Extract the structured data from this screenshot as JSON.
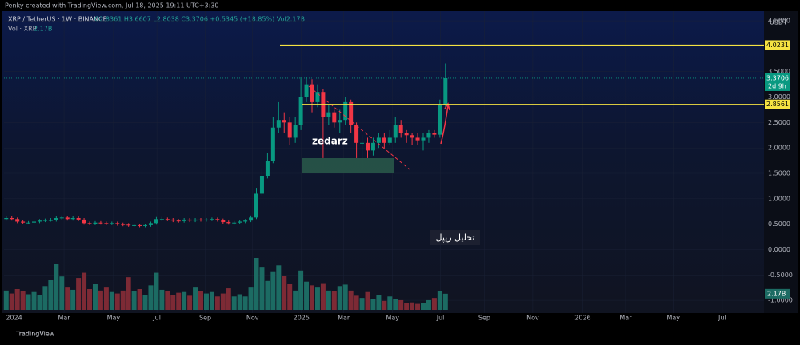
{
  "header": {
    "credit": "Penky created with TradingView.com, Jul 18, 2025 19:11 UTC+3:30",
    "symbol": "XRP / TetherUS · 1W · BINANCE",
    "ohlc": "O2.8361 H3.6607 L2.8038 C3.3706 +0.5345 (+18.85%) Vol2.17B",
    "vol_legend": "Vol · XRP",
    "vol_value": "2.17B",
    "currency": "USDT",
    "countdown": "2d 9h",
    "brand": "TradingView"
  },
  "annotations": {
    "watermark": "zedarz",
    "note": "تحلیل ریپل"
  },
  "chart_data": {
    "type": "candlestick",
    "up_color": "#089981",
    "down_color": "#f23645",
    "volume_up_color": "#1c6b63",
    "volume_down_color": "#7d2a35",
    "open": [
      0.6,
      0.62,
      0.6,
      0.55,
      0.53,
      0.53,
      0.55,
      0.57,
      0.58,
      0.58,
      0.62,
      0.63,
      0.6,
      0.62,
      0.59,
      0.52,
      0.51,
      0.53,
      0.52,
      0.51,
      0.52,
      0.5,
      0.49,
      0.48,
      0.48,
      0.47,
      0.48,
      0.52,
      0.6,
      0.6,
      0.59,
      0.57,
      0.56,
      0.59,
      0.57,
      0.59,
      0.58,
      0.59,
      0.6,
      0.58,
      0.54,
      0.52,
      0.53,
      0.55,
      0.57,
      0.63,
      1.1,
      1.45,
      1.75,
      2.4,
      2.55,
      2.5,
      2.2,
      2.45,
      3.0,
      3.25,
      2.9,
      3.1,
      2.6,
      2.7,
      2.5,
      2.55,
      2.9,
      2.45,
      2.1,
      2.1,
      1.95,
      2.1,
      2.2,
      2.1,
      2.2,
      2.45,
      2.3,
      2.25,
      2.2,
      2.15,
      2.2,
      2.3,
      2.26,
      2.8361
    ],
    "high": [
      0.66,
      0.66,
      0.63,
      0.58,
      0.56,
      0.58,
      0.6,
      0.61,
      0.62,
      0.66,
      0.67,
      0.66,
      0.66,
      0.65,
      0.62,
      0.55,
      0.56,
      0.56,
      0.55,
      0.55,
      0.55,
      0.53,
      0.52,
      0.51,
      0.5,
      0.51,
      0.55,
      0.64,
      0.64,
      0.63,
      0.62,
      0.6,
      0.62,
      0.62,
      0.62,
      0.62,
      0.62,
      0.63,
      0.63,
      0.61,
      0.57,
      0.56,
      0.58,
      0.6,
      0.67,
      1.2,
      1.6,
      1.9,
      2.6,
      2.9,
      2.7,
      2.6,
      2.6,
      3.4,
      3.4,
      3.35,
      3.25,
      3.15,
      2.85,
      2.75,
      2.75,
      3.0,
      2.95,
      2.5,
      2.25,
      2.2,
      2.2,
      2.3,
      2.3,
      2.35,
      2.6,
      2.55,
      2.35,
      2.3,
      2.3,
      2.3,
      2.35,
      2.35,
      2.95,
      3.6607
    ],
    "low": [
      0.57,
      0.57,
      0.52,
      0.5,
      0.5,
      0.5,
      0.52,
      0.54,
      0.55,
      0.55,
      0.59,
      0.57,
      0.57,
      0.56,
      0.49,
      0.48,
      0.48,
      0.49,
      0.48,
      0.48,
      0.47,
      0.46,
      0.45,
      0.45,
      0.44,
      0.44,
      0.45,
      0.49,
      0.56,
      0.56,
      0.54,
      0.53,
      0.53,
      0.54,
      0.54,
      0.55,
      0.55,
      0.56,
      0.55,
      0.51,
      0.49,
      0.49,
      0.5,
      0.52,
      0.54,
      0.6,
      1.05,
      1.4,
      1.7,
      2.3,
      2.3,
      2.05,
      2.1,
      2.35,
      2.9,
      2.7,
      2.8,
      1.8,
      2.45,
      2.4,
      2.3,
      2.45,
      2.3,
      1.8,
      1.6,
      1.8,
      1.85,
      2.0,
      2.0,
      2.05,
      2.1,
      2.2,
      2.1,
      2.05,
      2.05,
      1.95,
      2.1,
      2.2,
      2.2,
      2.8038
    ],
    "close": [
      0.62,
      0.6,
      0.55,
      0.53,
      0.53,
      0.55,
      0.57,
      0.58,
      0.58,
      0.62,
      0.63,
      0.6,
      0.62,
      0.59,
      0.52,
      0.51,
      0.53,
      0.52,
      0.51,
      0.52,
      0.5,
      0.49,
      0.48,
      0.48,
      0.47,
      0.48,
      0.52,
      0.6,
      0.6,
      0.59,
      0.57,
      0.56,
      0.59,
      0.57,
      0.59,
      0.58,
      0.59,
      0.6,
      0.58,
      0.54,
      0.52,
      0.53,
      0.55,
      0.57,
      0.63,
      1.1,
      1.45,
      1.75,
      2.4,
      2.55,
      2.5,
      2.2,
      2.45,
      3.0,
      3.25,
      2.9,
      3.1,
      2.6,
      2.7,
      2.5,
      2.55,
      2.9,
      2.45,
      2.1,
      2.1,
      1.95,
      2.1,
      2.2,
      2.1,
      2.2,
      2.45,
      2.3,
      2.25,
      2.2,
      2.15,
      2.2,
      2.3,
      2.26,
      2.8361,
      3.3706
    ],
    "volume": [
      2.6,
      2.2,
      2.8,
      2.5,
      2.1,
      2.4,
      2.0,
      3.2,
      4.0,
      6.2,
      4.5,
      3.0,
      2.7,
      4.3,
      5.0,
      2.8,
      3.5,
      2.6,
      3.0,
      2.4,
      2.2,
      2.6,
      4.4,
      2.5,
      2.8,
      2.0,
      3.3,
      5.0,
      2.7,
      2.5,
      2.0,
      2.3,
      2.4,
      1.9,
      3.0,
      2.5,
      2.2,
      2.4,
      1.8,
      2.2,
      2.9,
      1.8,
      2.1,
      1.8,
      3.0,
      7.0,
      5.8,
      3.9,
      5.2,
      6.0,
      4.6,
      3.5,
      2.6,
      5.3,
      3.8,
      3.3,
      3.0,
      3.6,
      2.6,
      2.5,
      3.2,
      3.4,
      2.6,
      1.9,
      1.6,
      2.4,
      1.4,
      2.0,
      1.2,
      1.8,
      1.5,
      1.3,
      0.9,
      1.0,
      0.8,
      0.9,
      1.3,
      1.6,
      2.5,
      2.17
    ],
    "xlim": [
      -0.4,
      136.3
    ],
    "xticks": [
      {
        "value": 1.4,
        "label": "2024"
      },
      {
        "value": 10.4,
        "label": "Mar"
      },
      {
        "value": 19.3,
        "label": "May"
      },
      {
        "value": 27.1,
        "label": "Jul"
      },
      {
        "value": 35.8,
        "label": "Sep"
      },
      {
        "value": 44.3,
        "label": "Nov"
      },
      {
        "value": 53.1,
        "label": "2025"
      },
      {
        "value": 60.7,
        "label": "Mar"
      },
      {
        "value": 69.5,
        "label": "May"
      },
      {
        "value": 78.1,
        "label": "Jul"
      },
      {
        "value": 86.0,
        "label": "Sep"
      },
      {
        "value": 94.7,
        "label": "Nov"
      },
      {
        "value": 103.7,
        "label": "2026"
      },
      {
        "value": 111.4,
        "label": "Mar"
      },
      {
        "value": 120.0,
        "label": "May"
      },
      {
        "value": 128.8,
        "label": "Jul"
      }
    ],
    "ylim": [
      -1.25,
      4.69
    ],
    "yticks": [
      {
        "value": 4.5,
        "label": "4.5000"
      },
      {
        "value": 3.5,
        "label": "3.5000"
      },
      {
        "value": 3.0,
        "label": "3.0000"
      },
      {
        "value": 2.5,
        "label": "2.5000"
      },
      {
        "value": 2.0,
        "label": "2.0000"
      },
      {
        "value": 1.5,
        "label": "1.5000"
      },
      {
        "value": 1.0,
        "label": "1.0000"
      },
      {
        "value": 0.5,
        "label": "0.5000"
      },
      {
        "value": 0,
        "label": "0.0000"
      },
      {
        "value": -0.5,
        "label": "-0.5000"
      },
      {
        "value": -1.0,
        "label": "-1.0000"
      }
    ],
    "hlines": [
      {
        "value": 4.0231,
        "label": "4.0231",
        "color": "#f5e342"
      },
      {
        "value": 2.8561,
        "label": "2.8561",
        "color": "#f5e342"
      }
    ],
    "last_price": {
      "value": 3.3706,
      "label": "3.3706",
      "color": "#089981"
    }
  }
}
